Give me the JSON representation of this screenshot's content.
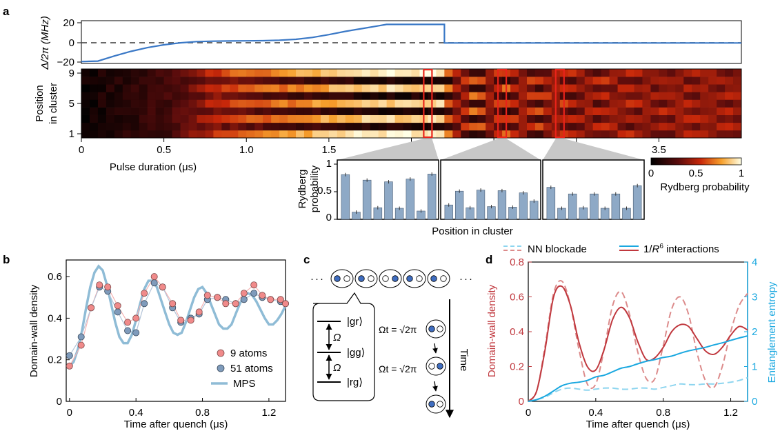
{
  "colors": {
    "blue": "#3a78c6",
    "gray_dash": "#555555",
    "red_highlight": "#e8231a",
    "bar_fill": "#8ea9c6",
    "bar_edge": "#4a5d73",
    "mps": "#8fbcd6",
    "dot9": "#f08a8a",
    "dot51": "#7f9bbb",
    "red_solid": "#c0383e",
    "red_dash": "#dc8b8b",
    "cyan": "#1aa8e0",
    "cyan_dash": "#8dd5ef",
    "atom_blue": "#3f6dc0"
  },
  "panel_a": {
    "label": "a",
    "detuning": {
      "ylabel": "Δ/2π (MHz)",
      "yticks": [
        "20",
        "0",
        "−20"
      ],
      "ylim": [
        -22,
        24
      ],
      "xlim": [
        0,
        4.0
      ],
      "curve_x": [
        0,
        0.1,
        0.2,
        0.3,
        0.4,
        0.5,
        0.6,
        0.7,
        0.8,
        0.9,
        1.0,
        1.1,
        1.2,
        1.3,
        1.4,
        1.5,
        1.6,
        1.7,
        1.8,
        1.85,
        2.0,
        2.1,
        2.2,
        2.2,
        2.5,
        3.0,
        3.5,
        4.0
      ],
      "curve_y": [
        -20,
        -19.5,
        -14,
        -9,
        -5,
        -2,
        0.2,
        1.5,
        2,
        2.2,
        2.3,
        2.5,
        3,
        4,
        6,
        9,
        12.5,
        15.5,
        18.5,
        20,
        20,
        20,
        20,
        0,
        0,
        0,
        0,
        0
      ]
    },
    "heatmap": {
      "ylabel_lines": [
        "Position",
        "in cluster"
      ],
      "yticks": [
        "9",
        "5",
        "1"
      ],
      "xlabel": "Pulse duration (μs)",
      "xticks": [
        "0",
        "0.5",
        "1.0",
        "1.5",
        "2.0",
        "2.5",
        "3.0",
        "3.5"
      ],
      "xlim": [
        0,
        4.0
      ],
      "n_positions": 9,
      "n_times": 80,
      "highlight_times": [
        2.1,
        2.55,
        2.9
      ]
    },
    "colorbar": {
      "ticks": [
        "0",
        "0.5",
        "1"
      ],
      "label": "Rydberg probability"
    },
    "insets": {
      "ylabel_lines": [
        "Rydberg",
        "probability"
      ],
      "yticks": [
        "1",
        "0.5",
        "0"
      ],
      "xlabel": "Position in cluster",
      "sets": [
        [
          0.81,
          0.13,
          0.71,
          0.21,
          0.68,
          0.2,
          0.73,
          0.15,
          0.82
        ],
        [
          0.26,
          0.51,
          0.21,
          0.53,
          0.23,
          0.52,
          0.22,
          0.48,
          0.33
        ],
        [
          0.58,
          0.2,
          0.46,
          0.21,
          0.46,
          0.2,
          0.46,
          0.2,
          0.61
        ]
      ]
    }
  },
  "panel_b": {
    "label": "b",
    "ylabel": "Domain-wall density",
    "xlabel": "Time after quench (μs)",
    "yticks": [
      "0.6",
      "0.4",
      "0.2",
      "0"
    ],
    "xticks": [
      "0",
      "0.4",
      "0.8",
      "1.2"
    ],
    "xlim": [
      -0.02,
      1.3
    ],
    "ylim": [
      0,
      0.68
    ],
    "legend": [
      "9 atoms",
      "51 atoms",
      "MPS"
    ],
    "series_9": {
      "name": "9 atoms",
      "x": [
        0,
        0.07,
        0.13,
        0.18,
        0.23,
        0.29,
        0.35,
        0.4,
        0.45,
        0.51,
        0.56,
        0.62,
        0.67,
        0.73,
        0.78,
        0.83,
        0.89,
        0.94,
        1.0,
        1.05,
        1.11,
        1.16,
        1.21,
        1.27,
        1.3
      ],
      "y": [
        0.17,
        0.27,
        0.45,
        0.56,
        0.55,
        0.46,
        0.38,
        0.4,
        0.52,
        0.6,
        0.55,
        0.47,
        0.39,
        0.39,
        0.43,
        0.51,
        0.5,
        0.47,
        0.47,
        0.52,
        0.56,
        0.51,
        0.49,
        0.49,
        0.47
      ]
    },
    "series_51": {
      "name": "51 atoms",
      "x": [
        0,
        0.07,
        0.13,
        0.18,
        0.23,
        0.29,
        0.35,
        0.4,
        0.45,
        0.51,
        0.56,
        0.62,
        0.67,
        0.73,
        0.78,
        0.83,
        0.89,
        0.94,
        1.0,
        1.05,
        1.11,
        1.16,
        1.21,
        1.27,
        1.3
      ],
      "y": [
        0.22,
        0.31,
        0.45,
        0.55,
        0.53,
        0.43,
        0.34,
        0.33,
        0.47,
        0.57,
        0.55,
        0.45,
        0.38,
        0.4,
        0.42,
        0.49,
        0.5,
        0.49,
        0.47,
        0.49,
        0.52,
        0.5,
        0.49,
        0.48,
        0.47
      ]
    },
    "mps": {
      "name": "MPS",
      "x": [
        0,
        0.025,
        0.05,
        0.075,
        0.1,
        0.125,
        0.15,
        0.175,
        0.2,
        0.225,
        0.25,
        0.275,
        0.3,
        0.325,
        0.35,
        0.375,
        0.4,
        0.425,
        0.45,
        0.475,
        0.5,
        0.525,
        0.55,
        0.575,
        0.6,
        0.625,
        0.65,
        0.675,
        0.7,
        0.725,
        0.75,
        0.775,
        0.8,
        0.825,
        0.85,
        0.875,
        0.9,
        0.925,
        0.95,
        0.975,
        1.0,
        1.025,
        1.05,
        1.075,
        1.1,
        1.125,
        1.15,
        1.175,
        1.2,
        1.225,
        1.25,
        1.275,
        1.3
      ],
      "y": [
        0.17,
        0.19,
        0.25,
        0.34,
        0.45,
        0.55,
        0.62,
        0.65,
        0.63,
        0.56,
        0.47,
        0.38,
        0.31,
        0.28,
        0.28,
        0.32,
        0.39,
        0.47,
        0.54,
        0.58,
        0.58,
        0.55,
        0.49,
        0.43,
        0.37,
        0.33,
        0.32,
        0.33,
        0.38,
        0.44,
        0.5,
        0.54,
        0.55,
        0.52,
        0.47,
        0.42,
        0.37,
        0.35,
        0.35,
        0.37,
        0.42,
        0.47,
        0.51,
        0.52,
        0.51,
        0.48,
        0.44,
        0.4,
        0.37,
        0.37,
        0.39,
        0.42,
        0.46
      ]
    }
  },
  "panel_c": {
    "label": "c",
    "level_labels": [
      "|gr⟩",
      "|gg⟩",
      "|rg⟩"
    ],
    "omega": "Ω",
    "omega_t": "Ωt = √2π",
    "time": "Time",
    "dots": "·"
  },
  "panel_d": {
    "label": "d",
    "ylabel_left": "Domain-wall density",
    "ylabel_right": "Entanglement entropy",
    "xlabel": "Time after quench (μs)",
    "yticks_left": [
      "0.8",
      "0.6",
      "0.4",
      "0.2",
      "0"
    ],
    "yticks_right": [
      "4",
      "3",
      "2",
      "1",
      "0"
    ],
    "xticks": [
      "0",
      "0.4",
      "0.8",
      "1.2"
    ],
    "xlim": [
      0,
      1.3
    ],
    "ylim_left": [
      0,
      0.8
    ],
    "ylim_right": [
      0,
      4
    ],
    "legend_nn": "NN blockade",
    "legend_r6_prefix": "1/",
    "legend_r6_var": "R",
    "legend_r6_sup": "6",
    "legend_r6_suffix": " interactions",
    "x": [
      0,
      0.05,
      0.1,
      0.15,
      0.2,
      0.25,
      0.3,
      0.35,
      0.4,
      0.45,
      0.5,
      0.55,
      0.6,
      0.65,
      0.7,
      0.75,
      0.8,
      0.85,
      0.9,
      0.95,
      1.0,
      1.05,
      1.1,
      1.15,
      1.2,
      1.25,
      1.3
    ],
    "dwd_r6": [
      0,
      0.06,
      0.3,
      0.6,
      0.66,
      0.55,
      0.34,
      0.2,
      0.18,
      0.3,
      0.47,
      0.54,
      0.48,
      0.34,
      0.24,
      0.25,
      0.31,
      0.4,
      0.44,
      0.43,
      0.36,
      0.29,
      0.27,
      0.31,
      0.38,
      0.43,
      0.41
    ],
    "dwd_nn": [
      0,
      0.06,
      0.32,
      0.62,
      0.69,
      0.55,
      0.3,
      0.1,
      0.1,
      0.3,
      0.55,
      0.63,
      0.5,
      0.28,
      0.13,
      0.13,
      0.32,
      0.53,
      0.6,
      0.5,
      0.28,
      0.12,
      0.08,
      0.2,
      0.4,
      0.55,
      0.62
    ],
    "ent_r6": [
      0,
      0.05,
      0.15,
      0.3,
      0.45,
      0.52,
      0.55,
      0.6,
      0.7,
      0.75,
      0.85,
      0.95,
      1.0,
      1.08,
      1.15,
      1.2,
      1.26,
      1.3,
      1.38,
      1.45,
      1.5,
      1.55,
      1.62,
      1.68,
      1.75,
      1.82,
      1.88
    ],
    "ent_nn": [
      0,
      0.05,
      0.12,
      0.25,
      0.35,
      0.38,
      0.35,
      0.32,
      0.35,
      0.38,
      0.38,
      0.35,
      0.35,
      0.38,
      0.38,
      0.35,
      0.4,
      0.45,
      0.5,
      0.48,
      0.48,
      0.5,
      0.5,
      0.52,
      0.55,
      0.6,
      0.68
    ]
  }
}
